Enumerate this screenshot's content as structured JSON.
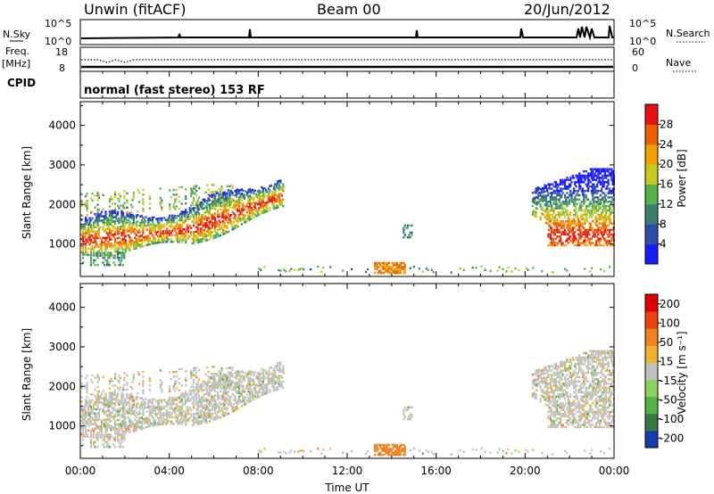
{
  "header": {
    "station": "Unwin (fitACF)",
    "beam": "Beam 00",
    "date": "20/Jun/2012"
  },
  "info_panel": {
    "nsky_label": "N.Sky",
    "nsky_ticks": [
      "10^5",
      "10^0"
    ],
    "nsearch_label": "N.Search",
    "nsearch_ticks": [
      "10^5",
      "10^0"
    ],
    "freq_label": "Freq.",
    "freq_unit": "[MHz]",
    "freq_ticks": [
      "18",
      "8"
    ],
    "nave_label": "Nave",
    "nave_ticks": [
      "60",
      "0"
    ],
    "cpid_label": "CPID",
    "cpid_text": "normal (fast stereo) 153 RF"
  },
  "chart_data": [
    {
      "type": "heatmap",
      "parameter": "Power",
      "ylabel": "Slant Range [km]",
      "yticks": [
        "1000",
        "2000",
        "3000",
        "4000"
      ],
      "ylim": [
        180,
        4600
      ],
      "xlim_hours": [
        0,
        24
      ],
      "colorbar_label": "Power [dB]",
      "colorbar_ticks": [
        "4",
        "8",
        "12",
        "16",
        "20",
        "24",
        "28"
      ],
      "colorbar_range": [
        0,
        32
      ],
      "colors": [
        "#1a1aff",
        "#2b4fa8",
        "#3d7f6e",
        "#55b24a",
        "#c8c81e",
        "#f0a000",
        "#f06000",
        "#e81010"
      ]
    },
    {
      "type": "heatmap",
      "parameter": "Velocity",
      "ylabel": "Slant Range [km]",
      "yticks": [
        "1000",
        "2000",
        "3000",
        "4000"
      ],
      "ylim": [
        180,
        4600
      ],
      "xlim_hours": [
        0,
        24
      ],
      "colorbar_label": "Velocity [m s⁻¹]",
      "colorbar_ticks": [
        "200",
        "100",
        "50",
        "15",
        "-15",
        "-50",
        "-100",
        "-200"
      ],
      "colors": [
        "#1a3ab0",
        "#3a7a40",
        "#55b24a",
        "#8fd060",
        "#c0c0c0",
        "#f0b030",
        "#f08020",
        "#f04010",
        "#e00000"
      ]
    }
  ],
  "x_axis": {
    "tick_labels": [
      "00:00",
      "04:00",
      "08:00",
      "12:00",
      "16:00",
      "20:00",
      "00:00"
    ],
    "label": "Time UT"
  }
}
